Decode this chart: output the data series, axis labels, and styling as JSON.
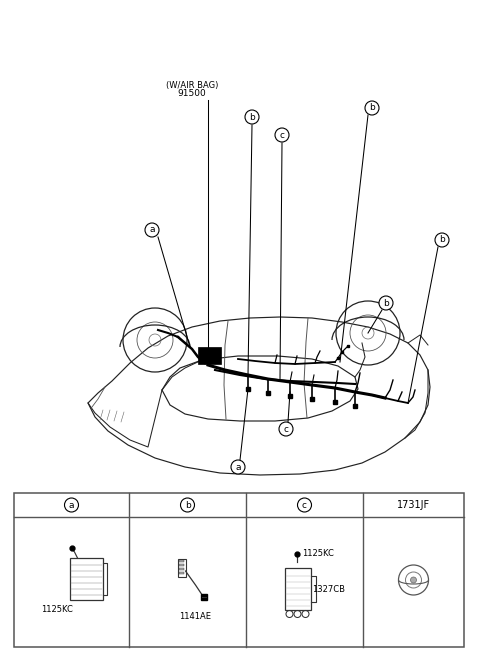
{
  "bg_color": "#ffffff",
  "fig_width": 4.8,
  "fig_height": 6.55,
  "dpi": 100,
  "wirbag_label_line1": "(W/AIR BAG)",
  "wirbag_label_line2": "91500",
  "col_headers": [
    "a",
    "b",
    "c",
    "1731JF"
  ],
  "col_a_code": "1125KC",
  "col_b_code": "1141AE",
  "col_c_code1": "1125KC",
  "col_c_code2": "1327CB",
  "line_color": "#222222",
  "table_border_color": "#555555",
  "text_color": "#000000",
  "font_size_small": 6,
  "font_size_med": 7
}
